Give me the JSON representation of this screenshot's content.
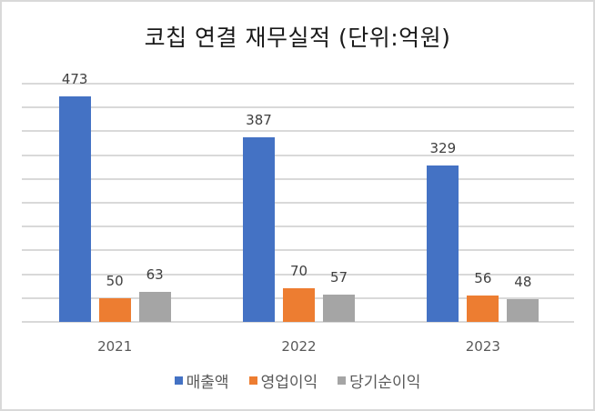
{
  "chart_data": {
    "type": "bar",
    "title": "코칩 연결 재무실적 (단위:억원)",
    "categories": [
      "2021",
      "2022",
      "2023"
    ],
    "series": [
      {
        "name": "매출액",
        "color": "#4472c4",
        "values": [
          473,
          387,
          329
        ]
      },
      {
        "name": "영업이익",
        "color": "#ed7d31",
        "values": [
          50,
          70,
          56
        ]
      },
      {
        "name": "당기순이익",
        "color": "#a5a5a5",
        "values": [
          63,
          57,
          48
        ]
      }
    ],
    "xlabel": "",
    "ylabel": "",
    "ylim": [
      0,
      500
    ],
    "ytick_step": 50,
    "grid": true,
    "y_axis_labels_visible": false,
    "legend_position": "bottom",
    "data_labels": true
  },
  "colors": {
    "gridline": "#d9d9d9",
    "border": "#d9d9d9",
    "text": "#595959"
  }
}
